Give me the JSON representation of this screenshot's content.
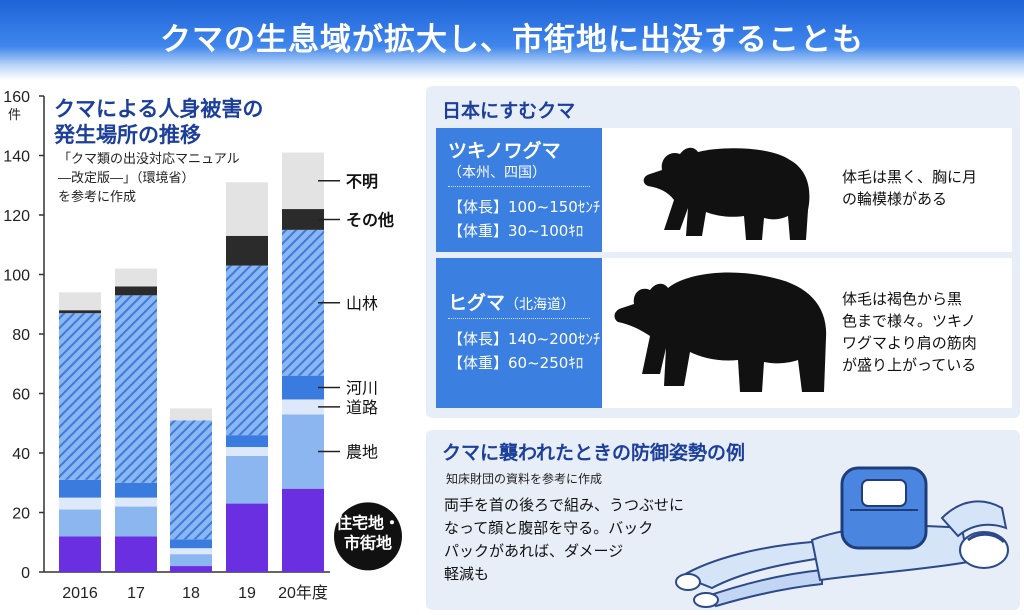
{
  "banner": {
    "title": "クマの生息域が拡大し、市街地に出没することも"
  },
  "chart_section": {
    "title_line1": "クマによる人身被害の",
    "title_line2": "発生場所の推移",
    "note_line1": "「クマ類の出没対応マニュアル",
    "note_line2": "―改定版―」（環境省）",
    "note_line3": "を参考に作成",
    "unit_label": "件"
  },
  "chart_data": {
    "type": "bar",
    "stacked": true,
    "categories": [
      "2016",
      "17",
      "18",
      "19",
      "20年度"
    ],
    "ylim": [
      0,
      160
    ],
    "yticks": [
      0,
      20,
      40,
      60,
      80,
      100,
      120,
      140,
      160
    ],
    "series": [
      {
        "name": "住宅地・市街地",
        "values": [
          12,
          12,
          2,
          23,
          28
        ],
        "color": "#6a2fe0",
        "pattern": "solid"
      },
      {
        "name": "農地",
        "values": [
          9,
          10,
          4,
          16,
          25
        ],
        "color": "#8cb6f0",
        "pattern": "solid"
      },
      {
        "name": "道路",
        "values": [
          4,
          3,
          2,
          3,
          5
        ],
        "color": "#dde9fb",
        "pattern": "solid"
      },
      {
        "name": "河川",
        "values": [
          6,
          5,
          3,
          4,
          8
        ],
        "color": "#3a7be0",
        "pattern": "solid"
      },
      {
        "name": "山林",
        "values": [
          56,
          63,
          40,
          57,
          49
        ],
        "color": "#3a7be0",
        "pattern": "hatch"
      },
      {
        "name": "その他",
        "values": [
          1,
          3,
          0,
          10,
          7
        ],
        "color": "#2b2b2b",
        "pattern": "solid"
      },
      {
        "name": "不明",
        "values": [
          6,
          6,
          4,
          18,
          19
        ],
        "color": "#e3e3e3",
        "pattern": "solid"
      }
    ],
    "series_label_lines": {
      "住宅地・市街地": [
        "住宅地・",
        "市街地"
      ]
    }
  },
  "japan_bears": {
    "title": "日本にすむクマ",
    "tsukinowaguma": {
      "name": "ツキノワグマ",
      "region": "（本州、四国）",
      "length": "【体長】100~150ｾﾝﾁ",
      "weight": "【体重】30~100ｷﾛ",
      "desc_line1": "体毛は黒く、胸に月",
      "desc_line2": "の輪模様がある"
    },
    "higuma": {
      "name": "ヒグマ",
      "region": "（北海道）",
      "length": "【体長】140~200ｾﾝﾁ",
      "weight": "【体重】60~250ｷﾛ",
      "desc_line1": "体毛は褐色から黒",
      "desc_line2": "色まで様々。ツキノ",
      "desc_line3": "ワグマより肩の筋肉",
      "desc_line4": "が盛り上がっている"
    }
  },
  "defense": {
    "title": "クマに襲われたときの防御姿勢の例",
    "note": "知床財団の資料を参考に作成",
    "text_line1": "両手を首の後ろで組み、うつぶせに",
    "text_line2": "なって顔と腹部を守る。バック",
    "text_line3": "パックがあれば、ダメージ",
    "text_line4": "軽減も"
  }
}
